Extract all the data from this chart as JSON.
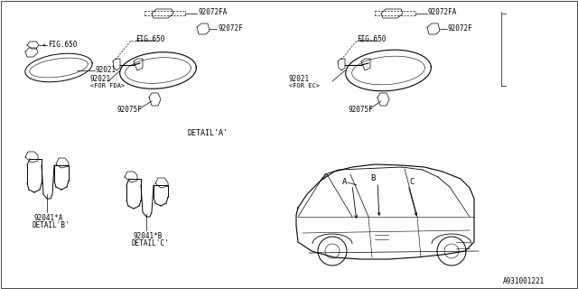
{
  "bg_color": "#ffffff",
  "border_color": "#000000",
  "line_color": "#000000",
  "part_numbers": {
    "fig650": "FIG.650",
    "p92021": "92021",
    "p92021_fda": "92021\n<FOR FDA>",
    "p92021_ec": "92021\n<FOR EC>",
    "p92072fa": "92072FA",
    "p92072f": "92072F",
    "p92075f": "92075F",
    "p92041a": "92041*A",
    "detail_b": "DETAIL'B'",
    "p92041b": "92041*B",
    "detail_c": "DETAIL'C'",
    "detail_a": "DETAIL'A'",
    "part_id": "A931001221"
  },
  "font_size": 5.5,
  "label_font": 6.0
}
